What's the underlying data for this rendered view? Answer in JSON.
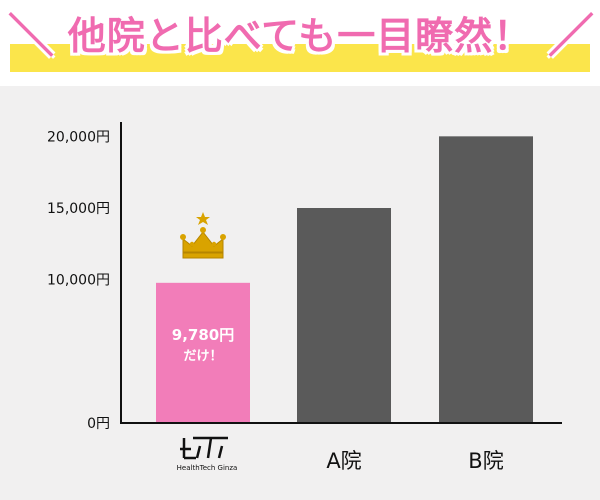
{
  "header": {
    "title": "他院と比べても一目瞭然！",
    "slash_left": "＼",
    "slash_right": "／"
  },
  "colors": {
    "highlight_bar": "#f27db9",
    "other_bar": "#5a5a5a",
    "title_pink": "#f06bb0",
    "banner_yellow": "#fbe54b",
    "crown_gold": "#d9a300",
    "plot_background": "#f1f0f0"
  },
  "logo": {
    "icon": "healthtech-ginza-logo-icon",
    "text": "HealthTech Ginza"
  },
  "chart_data": {
    "type": "bar",
    "title": "",
    "xlabel": "",
    "ylabel": "",
    "categories": [
      "HealthTech Ginza",
      "A院",
      "B院"
    ],
    "values": [
      9780,
      15000,
      20000
    ],
    "ylim": [
      0,
      21000
    ],
    "yticks": [
      {
        "value": 0,
        "label": "0円"
      },
      {
        "value": 10000,
        "label": "10,000円"
      },
      {
        "value": 15000,
        "label": "15,000円"
      },
      {
        "value": 20000,
        "label": "20,000円"
      }
    ],
    "grid": false,
    "legend": "none",
    "highlight": {
      "category_index": 0,
      "value_label": "9,780円",
      "note": "だけ！",
      "icon": "crown-icon"
    }
  }
}
